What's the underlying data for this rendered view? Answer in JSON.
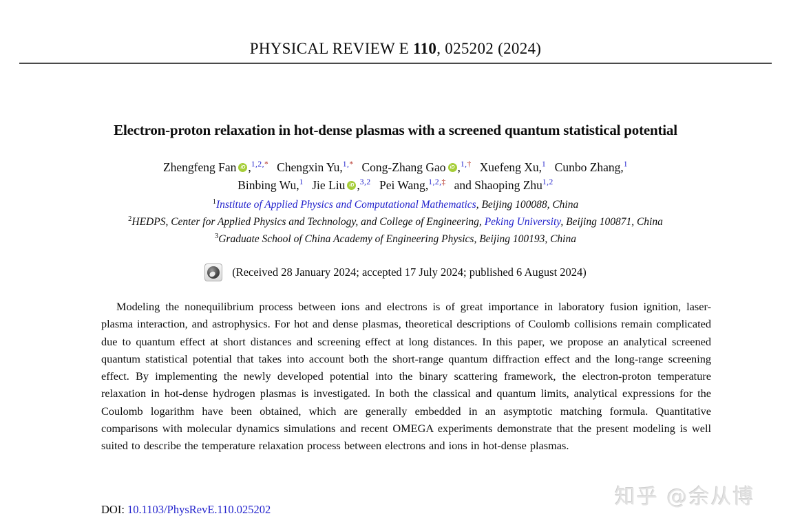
{
  "journal_header": {
    "text_before": "PHYSICAL REVIEW E ",
    "volume": "110",
    "text_after": ", 025202 (2024)"
  },
  "article": {
    "title": "Electron-proton relaxation in hot-dense plasmas with a screened quantum statistical potential"
  },
  "authors": {
    "line1": [
      {
        "name": "Zhengfeng Fan",
        "comma": ",",
        "sup_blue": "1,2,",
        "sup_red": "*"
      },
      {
        "name": "Chengxin Yu",
        "comma": ",",
        "sup_blue": "1,",
        "sup_red": "*"
      },
      {
        "name": "Cong-Zhang Gao",
        "comma": ",",
        "sup_blue": "1,",
        "sup_red": "†"
      },
      {
        "name": "Xuefeng Xu",
        "comma": ",",
        "sup_blue": "1"
      },
      {
        "name": "Cunbo Zhang",
        "comma": ",",
        "sup_blue": "1"
      }
    ],
    "line2": [
      {
        "name": "Binbing Wu",
        "comma": ",",
        "sup_blue": "1"
      },
      {
        "name": "Jie Liu",
        "comma": ",",
        "sup_blue": "3,2"
      },
      {
        "name": "Pei Wang",
        "comma": ",",
        "sup_blue": "1,2,",
        "sup_red": "‡"
      },
      {
        "name": "and Shaoping Zhu",
        "sup_blue": "1,2"
      }
    ]
  },
  "affiliations": [
    {
      "sup": "1",
      "link": "Institute of Applied Physics and Computational Mathematics",
      "rest": ", Beijing 100088, China"
    },
    {
      "sup": "2",
      "pre": "HEDPS, Center for Applied Physics and Technology, and College of Engineering, ",
      "link": "Peking University",
      "rest": ", Beijing 100871, China"
    },
    {
      "sup": "3",
      "pre": "Graduate School of China Academy of Engineering Physics, Beijing 100193, China"
    }
  ],
  "dates_line": "(Received 28 January 2024; accepted 17 July 2024; published 6 August 2024)",
  "abstract": "Modeling the nonequilibrium process between ions and electrons is of great importance in laboratory fusion ignition, laser-plasma interaction, and astrophysics. For hot and dense plasmas, theoretical descriptions of Coulomb collisions remain complicated due to quantum effect at short distances and screening effect at long distances. In this paper, we propose an analytical screened quantum statistical potential that takes into account both the short-range quantum diffraction effect and the long-range screening effect. By implementing the newly developed potential into the binary scattering framework, the electron-proton temperature relaxation in hot-dense hydrogen plasmas is investigated. In both the classical and quantum limits, analytical expressions for the Coulomb logarithm have been obtained, which are generally embedded in an asymptotic matching formula. Quantitative comparisons with molecular dynamics simulations and recent OMEGA experiments demonstrate that the present modeling is well suited to describe the temperature relaxation process between electrons and ions in hot-dense plasmas.",
  "doi": {
    "label": "DOI: ",
    "link": "10.1103/PhysRevE.110.025202"
  },
  "watermark": "知乎 @余从博",
  "icons": {
    "orcid": "orcid-id-icon",
    "crossmark": "crossmark-check-for-updates-icon"
  },
  "colors": {
    "link_blue": "#2323cc",
    "footnote_red": "#b53228",
    "orcid_green": "#a6ce39",
    "rule_gray": "#4a4a4a",
    "watermark_gray": "#e3e3e3"
  }
}
